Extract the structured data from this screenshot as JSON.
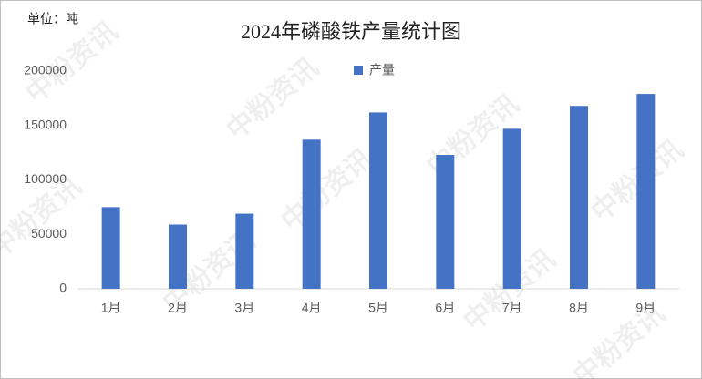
{
  "chart_data": {
    "type": "bar",
    "title": "2024年磷酸铁产量统计图",
    "unit_label": "单位：吨",
    "watermark": "中粉资讯",
    "categories": [
      "1月",
      "2月",
      "3月",
      "4月",
      "5月",
      "6月",
      "7月",
      "8月",
      "9月"
    ],
    "series": [
      {
        "name": "产量",
        "color": "#4472c4",
        "values": [
          75000,
          59000,
          69000,
          137000,
          162000,
          123000,
          147000,
          168000,
          179000
        ]
      }
    ],
    "ylim": [
      0,
      200000
    ],
    "yticks": [
      0,
      50000,
      100000,
      150000,
      200000
    ],
    "grid": false,
    "legend": "top"
  }
}
